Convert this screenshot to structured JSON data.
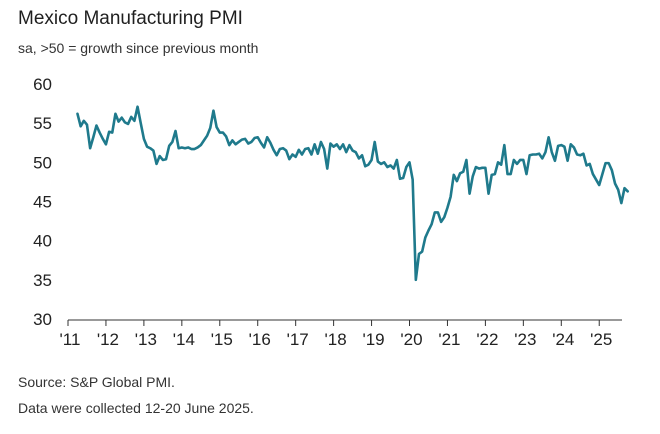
{
  "chart_data": {
    "type": "line",
    "title": "Mexico Manufacturing PMI",
    "subtitle": "sa, >50 = growth since previous month",
    "xlabel": "",
    "ylabel": "",
    "ylim": [
      30,
      60
    ],
    "yticks": [
      30,
      35,
      40,
      45,
      50,
      55,
      60
    ],
    "xlim": [
      2011,
      2025.5
    ],
    "xticks": [
      {
        "value": 2011,
        "label": "'11"
      },
      {
        "value": 2012,
        "label": "'12"
      },
      {
        "value": 2013,
        "label": "'13"
      },
      {
        "value": 2014,
        "label": "'14"
      },
      {
        "value": 2015,
        "label": "'15"
      },
      {
        "value": 2016,
        "label": "'16"
      },
      {
        "value": 2017,
        "label": "'17"
      },
      {
        "value": 2018,
        "label": "'18"
      },
      {
        "value": 2019,
        "label": "'19"
      },
      {
        "value": 2020,
        "label": "'20"
      },
      {
        "value": 2021,
        "label": "'21"
      },
      {
        "value": 2022,
        "label": "'22"
      },
      {
        "value": 2023,
        "label": "'23"
      },
      {
        "value": 2024,
        "label": "'24"
      },
      {
        "value": 2025,
        "label": "'25"
      }
    ],
    "grid": false,
    "line_color": "#1f7a8c",
    "series": [
      {
        "name": "Mexico Manufacturing PMI",
        "start": 2011.25,
        "step": 0.08333,
        "values": [
          56.2,
          54.6,
          55.3,
          54.8,
          51.8,
          53.2,
          54.7,
          53.8,
          53.0,
          52.3,
          53.9,
          53.8,
          56.2,
          55.2,
          55.7,
          55.1,
          54.9,
          55.8,
          55.3,
          57.1,
          55.0,
          53.0,
          52.0,
          51.8,
          51.5,
          49.8,
          50.8,
          50.3,
          50.4,
          52.1,
          52.6,
          54.0,
          51.8,
          51.9,
          51.8,
          51.9,
          51.7,
          51.7,
          51.9,
          52.2,
          52.8,
          53.4,
          54.4,
          56.6,
          54.5,
          53.8,
          53.8,
          53.3,
          52.2,
          52.8,
          52.3,
          52.6,
          52.9,
          53.0,
          52.4,
          52.6,
          53.1,
          53.2,
          52.5,
          51.9,
          53.2,
          52.5,
          51.6,
          50.9,
          51.7,
          51.8,
          51.5,
          50.4,
          51.0,
          50.7,
          51.6,
          51.0,
          51.7,
          51.8,
          51.0,
          52.3,
          51.1,
          52.6,
          51.7,
          49.2,
          52.4,
          52.0,
          52.3,
          51.7,
          52.3,
          51.3,
          52.2,
          51.5,
          51.3,
          50.5,
          50.9,
          49.5,
          49.7,
          50.3,
          52.6,
          50.1,
          49.8,
          50.0,
          49.4,
          49.6,
          49.2,
          50.3,
          47.9,
          48.0,
          49.4,
          50.0,
          47.8,
          35.0,
          38.3,
          38.6,
          40.4,
          41.3,
          42.1,
          43.6,
          43.6,
          42.4,
          43.0,
          44.2,
          45.6,
          48.4,
          47.6,
          48.6,
          48.8,
          50.3,
          46.0,
          48.2,
          49.4,
          49.2,
          49.3,
          49.3,
          46.0,
          48.4,
          48.5,
          50.0,
          49.7,
          52.2,
          48.5,
          48.5,
          50.3,
          49.8,
          50.3,
          50.3,
          48.5,
          50.9,
          51.0,
          51.0,
          51.1,
          50.5,
          51.3,
          53.2,
          51.3,
          50.2,
          52.1,
          52.2,
          52.0,
          50.2,
          52.3,
          51.9,
          51.0,
          50.9,
          51.1,
          49.6,
          49.8,
          48.5,
          47.8,
          47.1,
          48.5,
          49.9,
          49.9,
          49.0,
          47.3,
          46.5,
          44.8,
          46.7,
          46.3
        ]
      }
    ]
  },
  "footer": {
    "source": "Source: S&P Global PMI.",
    "note": "Data were collected 12-20 June 2025."
  }
}
